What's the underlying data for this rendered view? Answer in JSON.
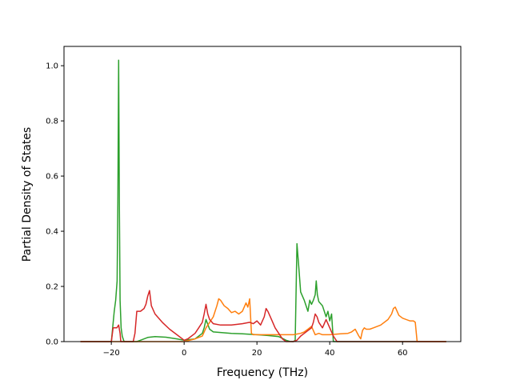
{
  "chart_data": {
    "type": "line",
    "title": "",
    "xlabel": "Frequency (THz)",
    "ylabel": "Partial Density of States",
    "xlim": [
      -33,
      76
    ],
    "ylim": [
      0,
      1.07
    ],
    "xticks": [
      -20,
      0,
      20,
      40,
      60
    ],
    "yticks": [
      0.0,
      0.2,
      0.4,
      0.6,
      0.8,
      1.0
    ],
    "ytick_labels": [
      "0.0",
      "0.2",
      "0.4",
      "0.6",
      "0.8",
      "1.0"
    ],
    "grid": false,
    "legend": "none",
    "series": [
      {
        "color": "#2ca02c",
        "x": [
          -28.5,
          -20,
          -19.2,
          -18.8,
          -18.4,
          -18.2,
          -18.0,
          -17.8,
          -17.6,
          -17.3,
          -17.0,
          -16.5,
          -13,
          -12,
          -10,
          -8,
          -5,
          -2,
          0,
          3,
          5,
          5.5,
          6,
          7,
          8,
          10,
          13,
          16,
          20,
          23,
          26,
          27,
          28,
          29,
          30,
          30.5,
          31,
          31.5,
          32,
          33,
          34,
          34.5,
          35,
          35.5,
          36,
          36.3,
          36.6,
          37,
          38,
          39,
          39.5,
          40,
          40.5,
          41,
          72
        ],
        "y": [
          0,
          0,
          0.11,
          0.15,
          0.22,
          0.5,
          1.02,
          0.5,
          0.15,
          0.05,
          0.02,
          0,
          0,
          0.005,
          0.015,
          0.018,
          0.016,
          0.01,
          0.005,
          0.01,
          0.03,
          0.05,
          0.08,
          0.045,
          0.035,
          0.033,
          0.03,
          0.028,
          0.025,
          0.022,
          0.018,
          0.012,
          0.005,
          0.001,
          0,
          0.005,
          0.355,
          0.27,
          0.18,
          0.15,
          0.11,
          0.15,
          0.135,
          0.15,
          0.17,
          0.22,
          0.17,
          0.145,
          0.13,
          0.09,
          0.11,
          0.075,
          0.1,
          0,
          0
        ]
      },
      {
        "color": "#ff7f0e",
        "x": [
          -28.5,
          0,
          3,
          5,
          6,
          8,
          9,
          9.5,
          10,
          11,
          12,
          13,
          14,
          15,
          16,
          17,
          17.5,
          18,
          18.5,
          19,
          20,
          25,
          30,
          32,
          33,
          34,
          35,
          36,
          37,
          38,
          40,
          43,
          45,
          46,
          47,
          48,
          48.5,
          49,
          49.5,
          50,
          51,
          52,
          54,
          56,
          57,
          57.5,
          58,
          59,
          60,
          62,
          63,
          63.5,
          64,
          72
        ],
        "y": [
          0,
          0,
          0.01,
          0.02,
          0.05,
          0.09,
          0.13,
          0.155,
          0.15,
          0.13,
          0.12,
          0.105,
          0.11,
          0.1,
          0.11,
          0.14,
          0.125,
          0.155,
          0.03,
          0.025,
          0.025,
          0.025,
          0.025,
          0.03,
          0.035,
          0.045,
          0.055,
          0.025,
          0.03,
          0.025,
          0.025,
          0.028,
          0.03,
          0.035,
          0.045,
          0.02,
          0.01,
          0.04,
          0.05,
          0.045,
          0.045,
          0.05,
          0.06,
          0.08,
          0.1,
          0.12,
          0.125,
          0.095,
          0.085,
          0.075,
          0.075,
          0.07,
          0,
          0
        ]
      },
      {
        "color": "#d62728",
        "x": [
          -28.5,
          -20,
          -19.5,
          -18.5,
          -18.0,
          -17.6,
          -17.4,
          -15,
          -14,
          -13.5,
          -13,
          -12,
          -11,
          -10.5,
          -10,
          -9.5,
          -9,
          -8,
          -6,
          -4,
          -2,
          0,
          1,
          3,
          4,
          5,
          5.5,
          6,
          6.5,
          7,
          8,
          10,
          13,
          16,
          18,
          19,
          20,
          21,
          22,
          22.5,
          23,
          24,
          25,
          27,
          28,
          29,
          30,
          31,
          32,
          33,
          34,
          35,
          35.5,
          36,
          36.5,
          37,
          38,
          39,
          40,
          41,
          42,
          72
        ],
        "y": [
          0,
          0,
          0.05,
          0.05,
          0.06,
          0.03,
          0,
          0,
          0,
          0.03,
          0.11,
          0.11,
          0.12,
          0.135,
          0.165,
          0.185,
          0.13,
          0.1,
          0.07,
          0.045,
          0.025,
          0.005,
          0.01,
          0.03,
          0.05,
          0.07,
          0.1,
          0.135,
          0.1,
          0.08,
          0.065,
          0.06,
          0.06,
          0.065,
          0.07,
          0.065,
          0.075,
          0.06,
          0.09,
          0.12,
          0.11,
          0.08,
          0.05,
          0.01,
          0,
          0,
          0,
          0.005,
          0.02,
          0.03,
          0.04,
          0.05,
          0.07,
          0.1,
          0.09,
          0.07,
          0.05,
          0.08,
          0.05,
          0.02,
          0,
          0
        ]
      }
    ]
  }
}
